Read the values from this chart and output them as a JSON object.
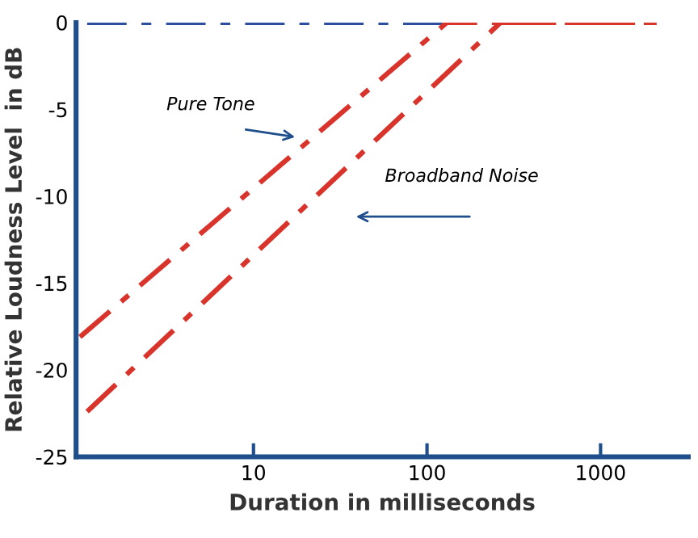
{
  "chart_data": {
    "type": "line",
    "xlabel": "Duration in milliseconds",
    "ylabel": "Relative Loudness Level  in dB",
    "log": "x",
    "xlim": [
      0.95,
      3200
    ],
    "xticks": [
      10,
      100,
      1000
    ],
    "ylim": [
      -25,
      0
    ],
    "yticks": [
      0,
      -5,
      -10,
      -15,
      -20,
      -25
    ],
    "grid": false,
    "line_style": "dashed",
    "marker": "none",
    "series": [
      {
        "color": "#2b4f9e",
        "x": [
          1.1,
          130
        ],
        "values": [
          0,
          0
        ]
      },
      {
        "color": "#d9342b",
        "x": [
          1.0,
          130,
          2100
        ],
        "values": [
          -18.1,
          0,
          0
        ]
      },
      {
        "color": "#d9342b",
        "x": [
          1.1,
          265,
          2100
        ],
        "values": [
          -22.4,
          0,
          0
        ]
      }
    ],
    "annotations": [
      "Pure Tone",
      "Broadband Noise"
    ]
  }
}
